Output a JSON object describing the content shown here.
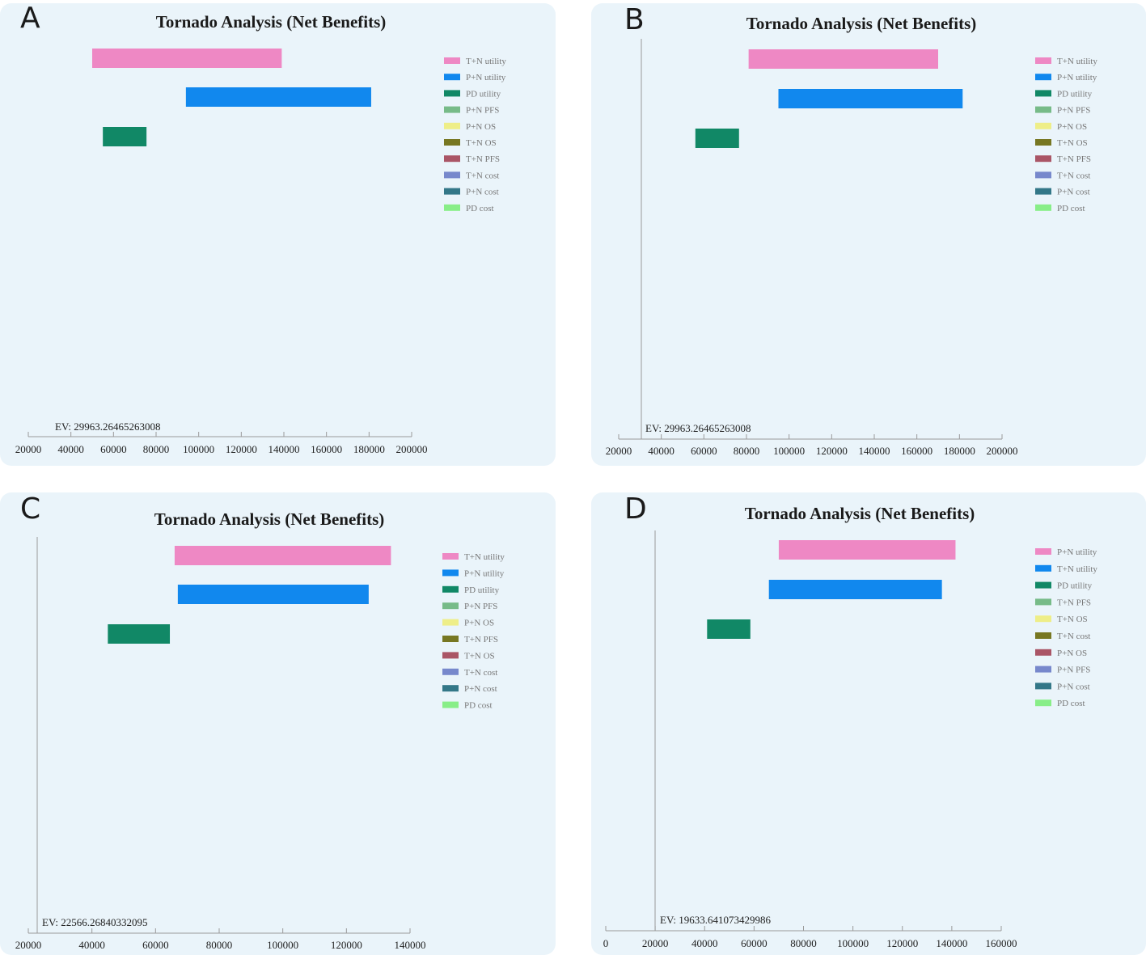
{
  "chart_data": [
    {
      "type": "bar",
      "panel": "A",
      "title": "Tornado Analysis (Net Benefits)",
      "ev_label": "EV: 29963.26465263008",
      "x_ticks": [
        "20000",
        "40000",
        "60000",
        "80000",
        "100000",
        "120000",
        "140000",
        "160000",
        "180000",
        "200000"
      ],
      "xlim": [
        20000,
        200000
      ],
      "bars": [
        {
          "name": "T+N utility",
          "low": 50000,
          "high": 139000,
          "color": "#ee88c4"
        },
        {
          "name": "P+N utility",
          "low": 94000,
          "high": 181000,
          "color": "#1188ee"
        },
        {
          "name": "PD utility",
          "low": 55000,
          "high": 75500,
          "color": "#118866"
        }
      ],
      "legend": [
        {
          "label": "T+N utility",
          "color": "#ee88c4"
        },
        {
          "label": "P+N utility",
          "color": "#1188ee"
        },
        {
          "label": "PD utility",
          "color": "#118866"
        },
        {
          "label": "P+N PFS",
          "color": "#77bb88"
        },
        {
          "label": "P+N OS",
          "color": "#eeee88"
        },
        {
          "label": "T+N OS",
          "color": "#777722"
        },
        {
          "label": "T+N PFS",
          "color": "#aa5566"
        },
        {
          "label": "T+N cost",
          "color": "#7788cc"
        },
        {
          "label": "P+N cost",
          "color": "#337788"
        },
        {
          "label": "PD cost",
          "color": "#88ee88"
        }
      ]
    },
    {
      "type": "bar",
      "panel": "B",
      "title": "Tornado Analysis (Net Benefits)",
      "ev_label": "EV: 29963.26465263008",
      "x_ticks": [
        "20000",
        "40000",
        "60000",
        "80000",
        "100000",
        "120000",
        "140000",
        "160000",
        "180000",
        "200000"
      ],
      "xlim": [
        20000,
        200000
      ],
      "bars": [
        {
          "name": "T+N utility",
          "low": 81000,
          "high": 170000,
          "color": "#ee88c4"
        },
        {
          "name": "P+N utility",
          "low": 95000,
          "high": 181500,
          "color": "#1188ee"
        },
        {
          "name": "PD utility",
          "low": 56000,
          "high": 76500,
          "color": "#118866"
        }
      ],
      "legend": [
        {
          "label": "T+N utility",
          "color": "#ee88c4"
        },
        {
          "label": "P+N utility",
          "color": "#1188ee"
        },
        {
          "label": "PD utility",
          "color": "#118866"
        },
        {
          "label": "P+N PFS",
          "color": "#77bb88"
        },
        {
          "label": "P+N OS",
          "color": "#eeee88"
        },
        {
          "label": "T+N OS",
          "color": "#777722"
        },
        {
          "label": "T+N PFS",
          "color": "#aa5566"
        },
        {
          "label": "T+N cost",
          "color": "#7788cc"
        },
        {
          "label": "P+N cost",
          "color": "#337788"
        },
        {
          "label": "PD cost",
          "color": "#88ee88"
        }
      ]
    },
    {
      "type": "bar",
      "panel": "C",
      "title": "Tornado Analysis (Net Benefits)",
      "ev_label": "EV: 22566.26840332095",
      "x_ticks": [
        "20000",
        "40000",
        "60000",
        "80000",
        "100000",
        "120000",
        "140000"
      ],
      "xlim": [
        20000,
        140000
      ],
      "bars": [
        {
          "name": "T+N utility",
          "low": 66000,
          "high": 134000,
          "color": "#ee88c4"
        },
        {
          "name": "P+N utility",
          "low": 67000,
          "high": 127000,
          "color": "#1188ee"
        },
        {
          "name": "PD utility",
          "low": 45000,
          "high": 64500,
          "color": "#118866"
        }
      ],
      "legend": [
        {
          "label": "T+N utility",
          "color": "#ee88c4"
        },
        {
          "label": "P+N utility",
          "color": "#1188ee"
        },
        {
          "label": "PD utility",
          "color": "#118866"
        },
        {
          "label": "P+N PFS",
          "color": "#77bb88"
        },
        {
          "label": "P+N OS",
          "color": "#eeee88"
        },
        {
          "label": "T+N PFS",
          "color": "#777722"
        },
        {
          "label": "T+N OS",
          "color": "#aa5566"
        },
        {
          "label": "T+N cost",
          "color": "#7788cc"
        },
        {
          "label": "P+N cost",
          "color": "#337788"
        },
        {
          "label": "PD cost",
          "color": "#88ee88"
        }
      ]
    },
    {
      "type": "bar",
      "panel": "D",
      "title": "Tornado Analysis (Net Benefits)",
      "ev_label": "EV: 19633.641073429986",
      "x_ticks": [
        "0",
        "20000",
        "40000",
        "60000",
        "80000",
        "100000",
        "120000",
        "140000",
        "160000"
      ],
      "xlim": [
        0,
        160000
      ],
      "bars": [
        {
          "name": "P+N utility",
          "low": 70000,
          "high": 141500,
          "color": "#ee88c4"
        },
        {
          "name": "T+N utility",
          "low": 66000,
          "high": 136000,
          "color": "#1188ee"
        },
        {
          "name": "PD utility",
          "low": 41000,
          "high": 58500,
          "color": "#118866"
        }
      ],
      "legend": [
        {
          "label": "P+N utility",
          "color": "#ee88c4"
        },
        {
          "label": "T+N utility",
          "color": "#1188ee"
        },
        {
          "label": "PD utility",
          "color": "#118866"
        },
        {
          "label": "T+N PFS",
          "color": "#77bb88"
        },
        {
          "label": "T+N OS",
          "color": "#eeee88"
        },
        {
          "label": "T+N cost",
          "color": "#777722"
        },
        {
          "label": "P+N OS",
          "color": "#aa5566"
        },
        {
          "label": "P+N PFS",
          "color": "#7788cc"
        },
        {
          "label": "P+N cost",
          "color": "#337788"
        },
        {
          "label": "PD cost",
          "color": "#88ee88"
        }
      ]
    }
  ]
}
